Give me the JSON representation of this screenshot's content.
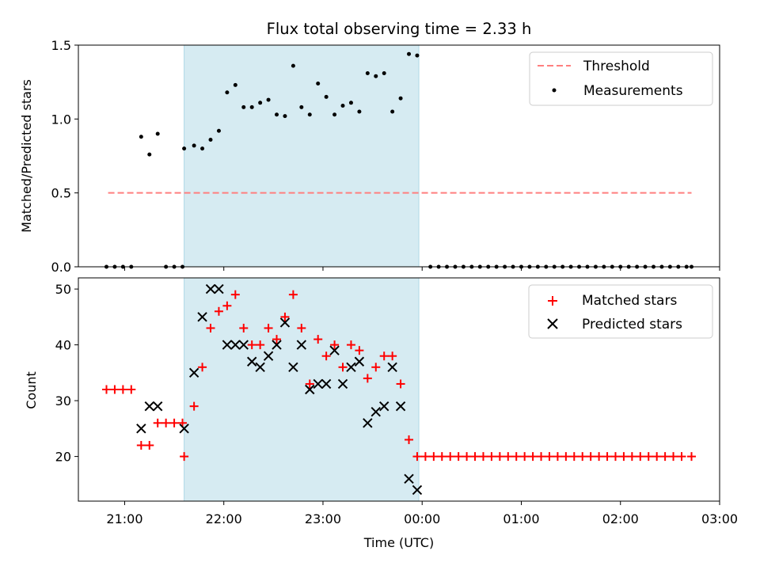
{
  "chart_data": [
    {
      "type": "scatter",
      "title": "Flux total observing time = 2.33 h",
      "ylabel": "Matched/Predicted stars",
      "xlabel": "",
      "xlim": [
        "20:32",
        "03:00"
      ],
      "ylim": [
        0,
        1.5
      ],
      "yticks": [
        "0.0",
        "0.5",
        "1.0",
        "1.5"
      ],
      "x_unit": "time (UTC)",
      "shaded_interval": [
        "21:36",
        "23:58"
      ],
      "threshold": {
        "name": "Threshold",
        "value": 0.5,
        "x_range": [
          "20:50",
          "02:43"
        ],
        "color": "#ff7f7f"
      },
      "series": [
        {
          "name": "Measurements",
          "color": "#000000",
          "marker": "dot",
          "points": [
            [
              "20:49",
              0
            ],
            [
              "20:54",
              0
            ],
            [
              "20:59",
              0
            ],
            [
              "21:04",
              0
            ],
            [
              "21:10",
              0.88
            ],
            [
              "21:15",
              0.76
            ],
            [
              "21:20",
              0.9
            ],
            [
              "21:25",
              0
            ],
            [
              "21:30",
              0
            ],
            [
              "21:35",
              0
            ],
            [
              "21:36",
              0.8
            ],
            [
              "21:42",
              0.82
            ],
            [
              "21:47",
              0.8
            ],
            [
              "21:52",
              0.86
            ],
            [
              "21:57",
              0.92
            ],
            [
              "22:02",
              1.18
            ],
            [
              "22:07",
              1.23
            ],
            [
              "22:12",
              1.08
            ],
            [
              "22:17",
              1.08
            ],
            [
              "22:22",
              1.11
            ],
            [
              "22:27",
              1.13
            ],
            [
              "22:32",
              1.03
            ],
            [
              "22:37",
              1.02
            ],
            [
              "22:42",
              1.36
            ],
            [
              "22:47",
              1.08
            ],
            [
              "22:52",
              1.03
            ],
            [
              "22:57",
              1.24
            ],
            [
              "23:02",
              1.15
            ],
            [
              "23:07",
              1.03
            ],
            [
              "23:12",
              1.09
            ],
            [
              "23:17",
              1.11
            ],
            [
              "23:22",
              1.05
            ],
            [
              "23:27",
              1.31
            ],
            [
              "23:32",
              1.29
            ],
            [
              "23:37",
              1.31
            ],
            [
              "23:42",
              1.05
            ],
            [
              "23:47",
              1.14
            ],
            [
              "23:52",
              1.44
            ],
            [
              "23:57",
              1.43
            ],
            [
              "00:05",
              0
            ],
            [
              "00:10",
              0
            ],
            [
              "00:15",
              0
            ],
            [
              "00:20",
              0
            ],
            [
              "00:25",
              0
            ],
            [
              "00:30",
              0
            ],
            [
              "00:35",
              0
            ],
            [
              "00:40",
              0
            ],
            [
              "00:45",
              0
            ],
            [
              "00:50",
              0
            ],
            [
              "00:55",
              0
            ],
            [
              "01:00",
              0
            ],
            [
              "01:05",
              0
            ],
            [
              "01:10",
              0
            ],
            [
              "01:15",
              0
            ],
            [
              "01:20",
              0
            ],
            [
              "01:25",
              0
            ],
            [
              "01:30",
              0
            ],
            [
              "01:35",
              0
            ],
            [
              "01:40",
              0
            ],
            [
              "01:45",
              0
            ],
            [
              "01:50",
              0
            ],
            [
              "01:55",
              0
            ],
            [
              "02:00",
              0
            ],
            [
              "02:05",
              0
            ],
            [
              "02:10",
              0
            ],
            [
              "02:15",
              0
            ],
            [
              "02:20",
              0
            ],
            [
              "02:25",
              0
            ],
            [
              "02:30",
              0
            ],
            [
              "02:35",
              0
            ],
            [
              "02:40",
              0
            ],
            [
              "02:43",
              0
            ]
          ]
        }
      ],
      "legend": {
        "placement": "top-right",
        "entries": [
          "Threshold",
          "Measurements"
        ]
      }
    },
    {
      "type": "scatter",
      "title": "",
      "ylabel": "Count",
      "xlabel": "Time (UTC)",
      "xlim": [
        "20:32",
        "03:00"
      ],
      "ylim": [
        12,
        52
      ],
      "yticks": [
        "20",
        "30",
        "40",
        "50"
      ],
      "xticks": [
        "21:00",
        "22:00",
        "23:00",
        "00:00",
        "01:00",
        "02:00",
        "03:00"
      ],
      "shaded_interval": [
        "21:36",
        "23:58"
      ],
      "series": [
        {
          "name": "Matched stars",
          "color": "#ff0000",
          "marker": "plus",
          "points": [
            [
              "20:49",
              32
            ],
            [
              "20:54",
              32
            ],
            [
              "20:59",
              32
            ],
            [
              "21:04",
              32
            ],
            [
              "21:10",
              22
            ],
            [
              "21:15",
              22
            ],
            [
              "21:20",
              26
            ],
            [
              "21:25",
              26
            ],
            [
              "21:30",
              26
            ],
            [
              "21:35",
              26
            ],
            [
              "21:36",
              20
            ],
            [
              "21:42",
              29
            ],
            [
              "21:47",
              36
            ],
            [
              "21:52",
              43
            ],
            [
              "21:57",
              46
            ],
            [
              "22:02",
              47
            ],
            [
              "22:07",
              49
            ],
            [
              "22:12",
              43
            ],
            [
              "22:17",
              40
            ],
            [
              "22:22",
              40
            ],
            [
              "22:27",
              43
            ],
            [
              "22:32",
              41
            ],
            [
              "22:37",
              45
            ],
            [
              "22:42",
              49
            ],
            [
              "22:47",
              43
            ],
            [
              "22:52",
              33
            ],
            [
              "22:57",
              41
            ],
            [
              "23:02",
              38
            ],
            [
              "23:07",
              40
            ],
            [
              "23:12",
              36
            ],
            [
              "23:17",
              40
            ],
            [
              "23:22",
              39
            ],
            [
              "23:27",
              34
            ],
            [
              "23:32",
              36
            ],
            [
              "23:37",
              38
            ],
            [
              "23:42",
              38
            ],
            [
              "23:47",
              33
            ],
            [
              "23:52",
              23
            ],
            [
              "23:57",
              20
            ],
            [
              "00:02",
              20
            ],
            [
              "00:07",
              20
            ],
            [
              "00:12",
              20
            ],
            [
              "00:17",
              20
            ],
            [
              "00:22",
              20
            ],
            [
              "00:27",
              20
            ],
            [
              "00:32",
              20
            ],
            [
              "00:37",
              20
            ],
            [
              "00:42",
              20
            ],
            [
              "00:47",
              20
            ],
            [
              "00:52",
              20
            ],
            [
              "00:57",
              20
            ],
            [
              "01:02",
              20
            ],
            [
              "01:07",
              20
            ],
            [
              "01:12",
              20
            ],
            [
              "01:17",
              20
            ],
            [
              "01:22",
              20
            ],
            [
              "01:27",
              20
            ],
            [
              "01:32",
              20
            ],
            [
              "01:37",
              20
            ],
            [
              "01:42",
              20
            ],
            [
              "01:47",
              20
            ],
            [
              "01:52",
              20
            ],
            [
              "01:57",
              20
            ],
            [
              "02:02",
              20
            ],
            [
              "02:07",
              20
            ],
            [
              "02:12",
              20
            ],
            [
              "02:17",
              20
            ],
            [
              "02:22",
              20
            ],
            [
              "02:27",
              20
            ],
            [
              "02:32",
              20
            ],
            [
              "02:37",
              20
            ],
            [
              "02:43",
              20
            ]
          ]
        },
        {
          "name": "Predicted stars",
          "color": "#000000",
          "marker": "x",
          "points": [
            [
              "21:10",
              25
            ],
            [
              "21:15",
              29
            ],
            [
              "21:20",
              29
            ],
            [
              "21:36",
              25
            ],
            [
              "21:42",
              35
            ],
            [
              "21:47",
              45
            ],
            [
              "21:52",
              50
            ],
            [
              "21:57",
              50
            ],
            [
              "22:02",
              40
            ],
            [
              "22:07",
              40
            ],
            [
              "22:12",
              40
            ],
            [
              "22:17",
              37
            ],
            [
              "22:22",
              36
            ],
            [
              "22:27",
              38
            ],
            [
              "22:32",
              40
            ],
            [
              "22:37",
              44
            ],
            [
              "22:42",
              36
            ],
            [
              "22:47",
              40
            ],
            [
              "22:52",
              32
            ],
            [
              "22:57",
              33
            ],
            [
              "23:02",
              33
            ],
            [
              "23:07",
              39
            ],
            [
              "23:12",
              33
            ],
            [
              "23:17",
              36
            ],
            [
              "23:22",
              37
            ],
            [
              "23:27",
              26
            ],
            [
              "23:32",
              28
            ],
            [
              "23:37",
              29
            ],
            [
              "23:42",
              36
            ],
            [
              "23:47",
              29
            ],
            [
              "23:52",
              16
            ],
            [
              "23:57",
              14
            ]
          ]
        }
      ],
      "legend": {
        "placement": "top-right",
        "entries": [
          "Matched stars",
          "Predicted stars"
        ]
      }
    }
  ]
}
